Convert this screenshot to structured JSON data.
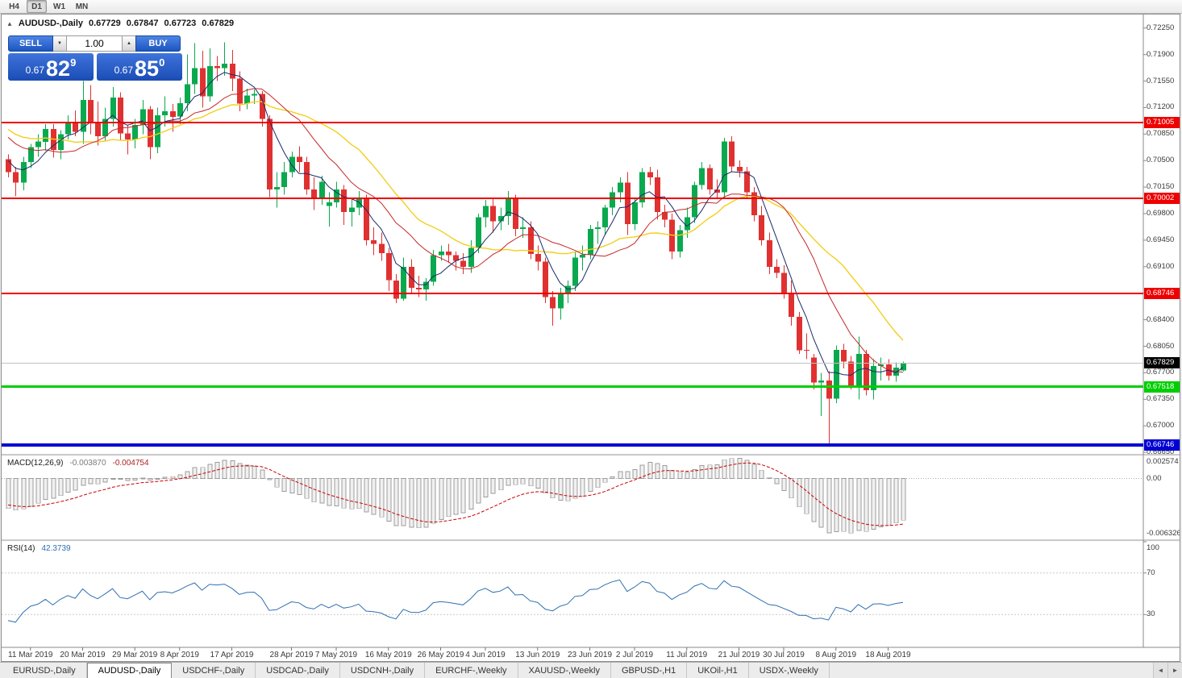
{
  "toolbar": {
    "buttons": [
      "H4",
      "D1",
      "W1",
      "MN"
    ],
    "active": "D1"
  },
  "tabs": {
    "items": [
      "EURUSD-,Daily",
      "AUDUSD-,Daily",
      "USDCHF-,Daily",
      "USDCAD-,Daily",
      "USDCNH-,Daily",
      "EURCHF-,Weekly",
      "XAUUSD-,Weekly",
      "GBPUSD-,H1",
      "UKOil-,H1",
      "USDX-,Weekly"
    ],
    "active_index": 1,
    "scroll_left_icon": "◄",
    "scroll_right_icon": "►"
  },
  "trade": {
    "sell_label": "SELL",
    "buy_label": "BUY",
    "volume": "1.00",
    "vol_down_icon": "▼",
    "vol_up_icon": "▲",
    "bid": {
      "prefix": "0.67",
      "big": "82",
      "pip": "9"
    },
    "ask": {
      "prefix": "0.67",
      "big": "85",
      "pip": "0"
    }
  },
  "chart": {
    "type": "candlestick",
    "info": {
      "marker": "▲",
      "symbol_period": "AUDUSD-,Daily",
      "open": "0.67729",
      "high": "0.67847",
      "low": "0.67723",
      "close": "0.67829"
    },
    "colors": {
      "bull": "#0aa94f",
      "bear": "#e03131",
      "ma_fast": "#1b2a6b",
      "ma_mid": "#c62828",
      "ma_slow": "#f2cf1d",
      "macd_signal": "#cc0000",
      "macd_bar_fill": "#f0f0f0",
      "macd_bar_stroke": "#9c9c9c",
      "rsi_line": "#2f6fb0"
    },
    "ma": {
      "fast_period": 5,
      "mid_period": 13,
      "slow_period": 21
    },
    "levels": [
      {
        "price": 0.71005,
        "label": "0.71005",
        "color": "#ee0000",
        "width": 2
      },
      {
        "price": 0.70002,
        "label": "0.70002",
        "color": "#ee0000",
        "width": 2
      },
      {
        "price": 0.68746,
        "label": "0.68746",
        "color": "#ee0000",
        "width": 2
      },
      {
        "price": 0.67518,
        "label": "0.67518",
        "color": "#00ce00",
        "width": 3
      },
      {
        "price": 0.66746,
        "label": "0.66746",
        "color": "#0000d4",
        "width": 4
      }
    ],
    "current_price": {
      "value": 0.67829,
      "label": "0.67829"
    },
    "y_axis": {
      "max": 0.7229,
      "min": 0.6663,
      "ticks": [
        "0.72250",
        "0.71900",
        "0.71550",
        "0.71200",
        "0.70850",
        "0.70500",
        "0.70150",
        "0.69800",
        "0.69450",
        "0.69100",
        "0.68750",
        "0.68400",
        "0.68050",
        "0.67700",
        "0.67350",
        "0.67000",
        "0.66650"
      ]
    },
    "x_axis": {
      "labels": [
        {
          "text": "11 Mar 2019",
          "i": 3
        },
        {
          "text": "20 Mar 2019",
          "i": 10
        },
        {
          "text": "29 Mar 2019",
          "i": 17
        },
        {
          "text": "8 Apr 2019",
          "i": 23
        },
        {
          "text": "17 Apr 2019",
          "i": 30
        },
        {
          "text": "28 Apr 2019",
          "i": 38
        },
        {
          "text": "7 May 2019",
          "i": 44
        },
        {
          "text": "16 May 2019",
          "i": 51
        },
        {
          "text": "26 May 2019",
          "i": 58
        },
        {
          "text": "4 Jun 2019",
          "i": 64
        },
        {
          "text": "13 Jun 2019",
          "i": 71
        },
        {
          "text": "23 Jun 2019",
          "i": 78
        },
        {
          "text": "2 Jul 2019",
          "i": 84
        },
        {
          "text": "11 Jul 2019",
          "i": 91
        },
        {
          "text": "21 Jul 2019",
          "i": 98
        },
        {
          "text": "30 Jul 2019",
          "i": 104
        },
        {
          "text": "8 Aug 2019",
          "i": 111
        },
        {
          "text": "18 Aug 2019",
          "i": 118
        }
      ]
    },
    "macd": {
      "name": "MACD(12,26,9)",
      "value_main": "-0.003870",
      "value_signal": "-0.004754",
      "axis": [
        "0.002574",
        "0.00",
        "-0.006326"
      ]
    },
    "rsi": {
      "name": "RSI(14)",
      "value": "42.3739",
      "axis": [
        "100",
        "70",
        "30"
      ],
      "levels": [
        70,
        30
      ]
    },
    "warmup_closes": [
      0.7205,
      0.719,
      0.716,
      0.713,
      0.7102,
      0.7085,
      0.7068,
      0.7092,
      0.7108,
      0.7122,
      0.7133,
      0.7118,
      0.71,
      0.7088,
      0.7078,
      0.7092,
      0.7103,
      0.709,
      0.7072,
      0.7058,
      0.7045,
      0.704
    ],
    "candles": [
      [
        0.7052,
        0.7058,
        0.7028,
        0.7035
      ],
      [
        0.7035,
        0.7042,
        0.7003,
        0.7021
      ],
      [
        0.7021,
        0.7055,
        0.7011,
        0.7048
      ],
      [
        0.7048,
        0.7072,
        0.704,
        0.7068
      ],
      [
        0.7068,
        0.7085,
        0.7055,
        0.7075
      ],
      [
        0.7075,
        0.7098,
        0.7063,
        0.7092
      ],
      [
        0.7092,
        0.7098,
        0.7054,
        0.7064
      ],
      [
        0.7064,
        0.709,
        0.7052,
        0.7085
      ],
      [
        0.7085,
        0.711,
        0.7078,
        0.71
      ],
      [
        0.71,
        0.7116,
        0.7082,
        0.7088
      ],
      [
        0.7088,
        0.7155,
        0.7072,
        0.713
      ],
      [
        0.713,
        0.715,
        0.7085,
        0.71
      ],
      [
        0.71,
        0.7128,
        0.707,
        0.7082
      ],
      [
        0.7082,
        0.712,
        0.7075,
        0.7105
      ],
      [
        0.7105,
        0.7147,
        0.7095,
        0.7133
      ],
      [
        0.7133,
        0.714,
        0.7077,
        0.7086
      ],
      [
        0.7086,
        0.7097,
        0.7058,
        0.7078
      ],
      [
        0.7078,
        0.7105,
        0.7066,
        0.7097
      ],
      [
        0.7097,
        0.713,
        0.7085,
        0.7118
      ],
      [
        0.7118,
        0.7122,
        0.7052,
        0.7068
      ],
      [
        0.7068,
        0.712,
        0.706,
        0.711
      ],
      [
        0.711,
        0.7135,
        0.7095,
        0.7115
      ],
      [
        0.7115,
        0.7125,
        0.7088,
        0.7108
      ],
      [
        0.7108,
        0.7133,
        0.7098,
        0.7126
      ],
      [
        0.7126,
        0.719,
        0.7115,
        0.7151
      ],
      [
        0.7151,
        0.7205,
        0.7138,
        0.7172
      ],
      [
        0.7172,
        0.7195,
        0.712,
        0.7135
      ],
      [
        0.7135,
        0.7198,
        0.7128,
        0.7175
      ],
      [
        0.7175,
        0.7188,
        0.7155,
        0.7172
      ],
      [
        0.7172,
        0.7206,
        0.7162,
        0.7178
      ],
      [
        0.7178,
        0.7196,
        0.7142,
        0.7158
      ],
      [
        0.7158,
        0.7168,
        0.7115,
        0.7125
      ],
      [
        0.7125,
        0.7145,
        0.7118,
        0.7136
      ],
      [
        0.7136,
        0.7144,
        0.7125,
        0.7138
      ],
      [
        0.7138,
        0.7142,
        0.7095,
        0.7105
      ],
      [
        0.7105,
        0.711,
        0.7002,
        0.7012
      ],
      [
        0.7012,
        0.7035,
        0.6988,
        0.7015
      ],
      [
        0.7015,
        0.7048,
        0.7005,
        0.7035
      ],
      [
        0.7035,
        0.7062,
        0.7028,
        0.7055
      ],
      [
        0.7055,
        0.7069,
        0.7035,
        0.7048
      ],
      [
        0.7048,
        0.7055,
        0.7005,
        0.7012
      ],
      [
        0.7012,
        0.7028,
        0.6985,
        0.7
      ],
      [
        0.7,
        0.703,
        0.6992,
        0.7022
      ],
      [
        0.699,
        0.7008,
        0.6963,
        0.6995
      ],
      [
        0.6995,
        0.7022,
        0.6988,
        0.7012
      ],
      [
        0.7012,
        0.7018,
        0.6965,
        0.6982
      ],
      [
        0.6982,
        0.7,
        0.6963,
        0.6988
      ],
      [
        0.6988,
        0.701,
        0.6978,
        0.7
      ],
      [
        0.7,
        0.7005,
        0.6938,
        0.6945
      ],
      [
        0.6945,
        0.6962,
        0.6925,
        0.694
      ],
      [
        0.694,
        0.6955,
        0.6918,
        0.6928
      ],
      [
        0.6928,
        0.6935,
        0.6878,
        0.6892
      ],
      [
        0.6892,
        0.69,
        0.6862,
        0.6868
      ],
      [
        0.6868,
        0.6922,
        0.6865,
        0.691
      ],
      [
        0.691,
        0.692,
        0.6875,
        0.6882
      ],
      [
        0.6882,
        0.6898,
        0.687,
        0.688
      ],
      [
        0.688,
        0.6895,
        0.6865,
        0.689
      ],
      [
        0.689,
        0.6932,
        0.6885,
        0.6925
      ],
      [
        0.6925,
        0.6938,
        0.6918,
        0.693
      ],
      [
        0.693,
        0.694,
        0.6915,
        0.6925
      ],
      [
        0.6925,
        0.693,
        0.6905,
        0.6918
      ],
      [
        0.6918,
        0.6928,
        0.69,
        0.691
      ],
      [
        0.691,
        0.6945,
        0.6902,
        0.6935
      ],
      [
        0.6935,
        0.698,
        0.6928,
        0.6975
      ],
      [
        0.6975,
        0.6998,
        0.6962,
        0.699
      ],
      [
        0.699,
        0.7,
        0.6955,
        0.697
      ],
      [
        0.697,
        0.6988,
        0.6958,
        0.6977
      ],
      [
        0.6977,
        0.701,
        0.6965,
        0.7
      ],
      [
        0.7,
        0.7005,
        0.695,
        0.696
      ],
      [
        0.696,
        0.6975,
        0.6948,
        0.6962
      ],
      [
        0.6962,
        0.697,
        0.692,
        0.6927
      ],
      [
        0.6927,
        0.6938,
        0.6905,
        0.6917
      ],
      [
        0.6917,
        0.6922,
        0.6862,
        0.687
      ],
      [
        0.687,
        0.6878,
        0.6832,
        0.6855
      ],
      [
        0.6855,
        0.6882,
        0.684,
        0.6875
      ],
      [
        0.6875,
        0.6892,
        0.6862,
        0.6885
      ],
      [
        0.6885,
        0.693,
        0.6878,
        0.6922
      ],
      [
        0.6922,
        0.6938,
        0.6905,
        0.6926
      ],
      [
        0.6926,
        0.6965,
        0.692,
        0.696
      ],
      [
        0.696,
        0.697,
        0.694,
        0.6962
      ],
      [
        0.6962,
        0.6992,
        0.6952,
        0.6988
      ],
      [
        0.6988,
        0.7015,
        0.6978,
        0.7008
      ],
      [
        0.7008,
        0.7028,
        0.6995,
        0.7021
      ],
      [
        0.7021,
        0.7035,
        0.6952,
        0.6966
      ],
      [
        0.6966,
        0.7,
        0.6958,
        0.6995
      ],
      [
        0.6995,
        0.704,
        0.6988,
        0.7035
      ],
      [
        0.7035,
        0.7042,
        0.7018,
        0.7028
      ],
      [
        0.7028,
        0.7038,
        0.6972,
        0.6982
      ],
      [
        0.6982,
        0.6992,
        0.6962,
        0.6972
      ],
      [
        0.6972,
        0.698,
        0.692,
        0.693
      ],
      [
        0.693,
        0.6965,
        0.6922,
        0.6958
      ],
      [
        0.6958,
        0.6988,
        0.6948,
        0.6975
      ],
      [
        0.6975,
        0.7022,
        0.6968,
        0.7018
      ],
      [
        0.7018,
        0.7048,
        0.7012,
        0.704
      ],
      [
        0.704,
        0.7045,
        0.7005,
        0.7012
      ],
      [
        0.7012,
        0.7025,
        0.7,
        0.7008
      ],
      [
        0.7008,
        0.708,
        0.7,
        0.7075
      ],
      [
        0.7075,
        0.7082,
        0.7035,
        0.7042
      ],
      [
        0.7042,
        0.705,
        0.7028,
        0.7036
      ],
      [
        0.7036,
        0.7042,
        0.7,
        0.7008
      ],
      [
        0.7008,
        0.7015,
        0.697,
        0.6978
      ],
      [
        0.6978,
        0.699,
        0.6938,
        0.6945
      ],
      [
        0.6945,
        0.6955,
        0.69,
        0.691
      ],
      [
        0.691,
        0.692,
        0.6895,
        0.6902
      ],
      [
        0.6902,
        0.6912,
        0.6868,
        0.6875
      ],
      [
        0.6875,
        0.6892,
        0.6832,
        0.6844
      ],
      [
        0.6844,
        0.685,
        0.6795,
        0.68
      ],
      [
        0.68,
        0.6822,
        0.6788,
        0.6799
      ],
      [
        0.679,
        0.6795,
        0.6748,
        0.6757
      ],
      [
        0.6757,
        0.677,
        0.6713,
        0.676
      ],
      [
        0.676,
        0.6772,
        0.6677,
        0.6736
      ],
      [
        0.6736,
        0.6806,
        0.673,
        0.68
      ],
      [
        0.68,
        0.6808,
        0.6776,
        0.6785
      ],
      [
        0.6785,
        0.6792,
        0.6748,
        0.6753
      ],
      [
        0.6753,
        0.6818,
        0.6735,
        0.6795
      ],
      [
        0.6795,
        0.68,
        0.674,
        0.6747
      ],
      [
        0.6747,
        0.6788,
        0.6735,
        0.6779
      ],
      [
        0.6779,
        0.679,
        0.676,
        0.6781
      ],
      [
        0.6781,
        0.6788,
        0.676,
        0.6766
      ],
      [
        0.6766,
        0.6784,
        0.6758,
        0.6777
      ],
      [
        0.67729,
        0.67847,
        0.67723,
        0.67829
      ]
    ]
  }
}
